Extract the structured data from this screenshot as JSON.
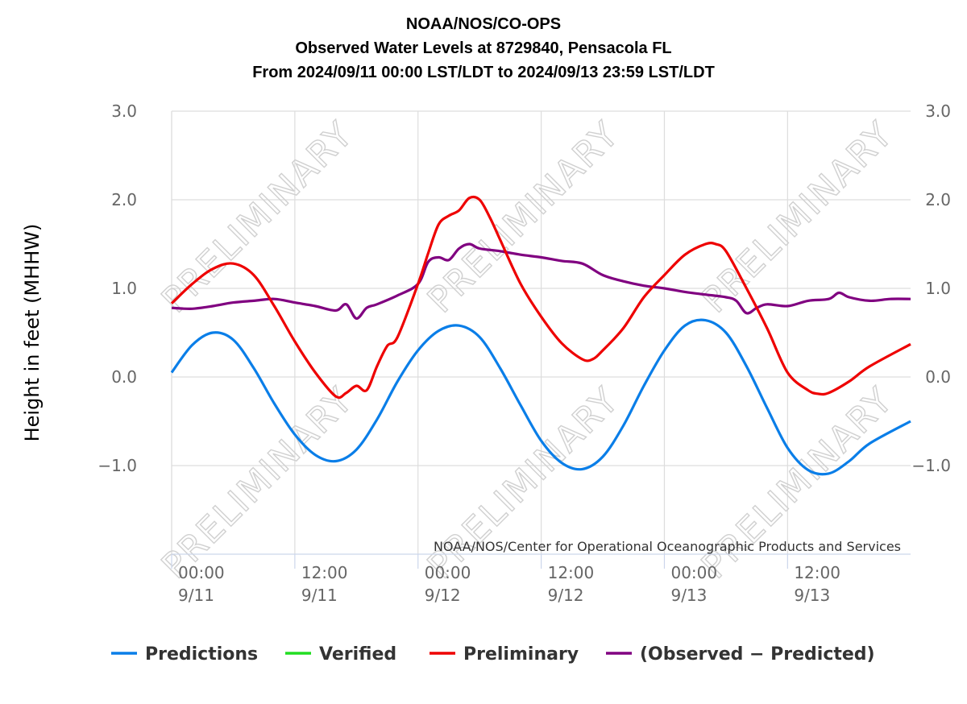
{
  "chart_data": {
    "type": "line",
    "title": "NOAA/NOS/CO-OPS",
    "subtitle_lines": [
      "Observed Water Levels at 8729840, Pensacola FL",
      "From 2024/09/11 00:00 LST/LDT to 2024/09/13 23:59 LST/LDT"
    ],
    "ylabel": "Height in feet (MHHW)",
    "ylim": [
      -2.0,
      3.0
    ],
    "y_ticks": [
      {
        "value": 3.0,
        "label": "3.0"
      },
      {
        "value": 2.0,
        "label": "2.0"
      },
      {
        "value": 1.0,
        "label": "1.0"
      },
      {
        "value": 0.0,
        "label": "0.0"
      },
      {
        "value": -1.0,
        "label": "−1.0"
      }
    ],
    "xlim": [
      "2024-09-11 00:00",
      "2024-09-13 23:59"
    ],
    "x_ticks": [
      {
        "time": "2024-09-11 00:00",
        "label1": "00:00",
        "label2": "9/11"
      },
      {
        "time": "2024-09-11 12:00",
        "label1": "12:00",
        "label2": "9/11"
      },
      {
        "time": "2024-09-12 00:00",
        "label1": "00:00",
        "label2": "9/12"
      },
      {
        "time": "2024-09-12 12:00",
        "label1": "12:00",
        "label2": "9/12"
      },
      {
        "time": "2024-09-13 00:00",
        "label1": "00:00",
        "label2": "9/13"
      },
      {
        "time": "2024-09-13 12:00",
        "label1": "12:00",
        "label2": "9/13"
      }
    ],
    "grid": true,
    "legend_position": "bottom",
    "credit": "NOAA/NOS/Center for Operational Oceanographic Products and Services",
    "watermark": "PRELIMINARY",
    "series": [
      {
        "name": "Predictions",
        "color": "#0a7ee8",
        "points": [
          {
            "t": "2024-09-11 00:00",
            "v": 0.05
          },
          {
            "t": "2024-09-11 02:00",
            "v": 0.36
          },
          {
            "t": "2024-09-11 04:00",
            "v": 0.5
          },
          {
            "t": "2024-09-11 06:00",
            "v": 0.42
          },
          {
            "t": "2024-09-11 08:00",
            "v": 0.1
          },
          {
            "t": "2024-09-11 10:00",
            "v": -0.3
          },
          {
            "t": "2024-09-11 12:00",
            "v": -0.65
          },
          {
            "t": "2024-09-11 14:00",
            "v": -0.88
          },
          {
            "t": "2024-09-11 16:00",
            "v": -0.95
          },
          {
            "t": "2024-09-11 18:00",
            "v": -0.82
          },
          {
            "t": "2024-09-11 20:00",
            "v": -0.48
          },
          {
            "t": "2024-09-11 22:00",
            "v": -0.05
          },
          {
            "t": "2024-09-12 00:00",
            "v": 0.3
          },
          {
            "t": "2024-09-12 02:00",
            "v": 0.52
          },
          {
            "t": "2024-09-12 04:00",
            "v": 0.58
          },
          {
            "t": "2024-09-12 06:00",
            "v": 0.45
          },
          {
            "t": "2024-09-12 08:00",
            "v": 0.1
          },
          {
            "t": "2024-09-12 10:00",
            "v": -0.32
          },
          {
            "t": "2024-09-12 12:00",
            "v": -0.72
          },
          {
            "t": "2024-09-12 14:00",
            "v": -0.97
          },
          {
            "t": "2024-09-12 16:00",
            "v": -1.04
          },
          {
            "t": "2024-09-12 18:00",
            "v": -0.9
          },
          {
            "t": "2024-09-12 20:00",
            "v": -0.55
          },
          {
            "t": "2024-09-12 22:00",
            "v": -0.1
          },
          {
            "t": "2024-09-13 00:00",
            "v": 0.3
          },
          {
            "t": "2024-09-13 02:00",
            "v": 0.58
          },
          {
            "t": "2024-09-13 04:00",
            "v": 0.64
          },
          {
            "t": "2024-09-13 06:00",
            "v": 0.5
          },
          {
            "t": "2024-09-13 08:00",
            "v": 0.12
          },
          {
            "t": "2024-09-13 10:00",
            "v": -0.35
          },
          {
            "t": "2024-09-13 12:00",
            "v": -0.8
          },
          {
            "t": "2024-09-13 14:00",
            "v": -1.05
          },
          {
            "t": "2024-09-13 16:00",
            "v": -1.09
          },
          {
            "t": "2024-09-13 18:00",
            "v": -0.95
          },
          {
            "t": "2024-09-13 20:00",
            "v": -0.75
          },
          {
            "t": "2024-09-13 23:59",
            "v": -0.5
          }
        ]
      },
      {
        "name": "Verified",
        "color": "#22dd22",
        "points": []
      },
      {
        "name": "Preliminary",
        "color": "#ee0000",
        "points": [
          {
            "t": "2024-09-11 00:00",
            "v": 0.83
          },
          {
            "t": "2024-09-11 02:00",
            "v": 1.05
          },
          {
            "t": "2024-09-11 04:00",
            "v": 1.22
          },
          {
            "t": "2024-09-11 06:00",
            "v": 1.28
          },
          {
            "t": "2024-09-11 08:00",
            "v": 1.15
          },
          {
            "t": "2024-09-11 10:00",
            "v": 0.8
          },
          {
            "t": "2024-09-11 12:00",
            "v": 0.4
          },
          {
            "t": "2024-09-11 14:00",
            "v": 0.05
          },
          {
            "t": "2024-09-11 16:00",
            "v": -0.22
          },
          {
            "t": "2024-09-11 17:00",
            "v": -0.18
          },
          {
            "t": "2024-09-11 18:00",
            "v": -0.1
          },
          {
            "t": "2024-09-11 19:00",
            "v": -0.15
          },
          {
            "t": "2024-09-11 20:00",
            "v": 0.12
          },
          {
            "t": "2024-09-11 21:00",
            "v": 0.35
          },
          {
            "t": "2024-09-11 22:00",
            "v": 0.45
          },
          {
            "t": "2024-09-12 00:00",
            "v": 1.05
          },
          {
            "t": "2024-09-12 01:00",
            "v": 1.4
          },
          {
            "t": "2024-09-12 02:00",
            "v": 1.72
          },
          {
            "t": "2024-09-12 03:00",
            "v": 1.82
          },
          {
            "t": "2024-09-12 04:00",
            "v": 1.88
          },
          {
            "t": "2024-09-12 05:00",
            "v": 2.02
          },
          {
            "t": "2024-09-12 06:00",
            "v": 2.0
          },
          {
            "t": "2024-09-12 07:00",
            "v": 1.8
          },
          {
            "t": "2024-09-12 08:00",
            "v": 1.55
          },
          {
            "t": "2024-09-12 10:00",
            "v": 1.05
          },
          {
            "t": "2024-09-12 12:00",
            "v": 0.68
          },
          {
            "t": "2024-09-12 14:00",
            "v": 0.38
          },
          {
            "t": "2024-09-12 16:00",
            "v": 0.2
          },
          {
            "t": "2024-09-12 17:00",
            "v": 0.2
          },
          {
            "t": "2024-09-12 18:00",
            "v": 0.3
          },
          {
            "t": "2024-09-12 20:00",
            "v": 0.55
          },
          {
            "t": "2024-09-12 22:00",
            "v": 0.9
          },
          {
            "t": "2024-09-13 00:00",
            "v": 1.15
          },
          {
            "t": "2024-09-13 02:00",
            "v": 1.38
          },
          {
            "t": "2024-09-13 04:00",
            "v": 1.5
          },
          {
            "t": "2024-09-13 05:00",
            "v": 1.5
          },
          {
            "t": "2024-09-13 06:00",
            "v": 1.42
          },
          {
            "t": "2024-09-13 08:00",
            "v": 1.0
          },
          {
            "t": "2024-09-13 10:00",
            "v": 0.55
          },
          {
            "t": "2024-09-13 12:00",
            "v": 0.05
          },
          {
            "t": "2024-09-13 14:00",
            "v": -0.15
          },
          {
            "t": "2024-09-13 15:00",
            "v": -0.19
          },
          {
            "t": "2024-09-13 16:00",
            "v": -0.18
          },
          {
            "t": "2024-09-13 18:00",
            "v": -0.05
          },
          {
            "t": "2024-09-13 20:00",
            "v": 0.12
          },
          {
            "t": "2024-09-13 23:59",
            "v": 0.37
          }
        ]
      },
      {
        "name": "(Observed − Predicted)",
        "color": "#800080",
        "points": [
          {
            "t": "2024-09-11 00:00",
            "v": 0.78
          },
          {
            "t": "2024-09-11 02:00",
            "v": 0.77
          },
          {
            "t": "2024-09-11 04:00",
            "v": 0.8
          },
          {
            "t": "2024-09-11 06:00",
            "v": 0.84
          },
          {
            "t": "2024-09-11 08:00",
            "v": 0.86
          },
          {
            "t": "2024-09-11 10:00",
            "v": 0.88
          },
          {
            "t": "2024-09-11 12:00",
            "v": 0.84
          },
          {
            "t": "2024-09-11 14:00",
            "v": 0.8
          },
          {
            "t": "2024-09-11 16:00",
            "v": 0.75
          },
          {
            "t": "2024-09-11 17:00",
            "v": 0.82
          },
          {
            "t": "2024-09-11 18:00",
            "v": 0.66
          },
          {
            "t": "2024-09-11 19:00",
            "v": 0.78
          },
          {
            "t": "2024-09-11 20:00",
            "v": 0.82
          },
          {
            "t": "2024-09-11 22:00",
            "v": 0.92
          },
          {
            "t": "2024-09-12 00:00",
            "v": 1.05
          },
          {
            "t": "2024-09-12 01:00",
            "v": 1.3
          },
          {
            "t": "2024-09-12 02:00",
            "v": 1.35
          },
          {
            "t": "2024-09-12 03:00",
            "v": 1.32
          },
          {
            "t": "2024-09-12 04:00",
            "v": 1.45
          },
          {
            "t": "2024-09-12 05:00",
            "v": 1.5
          },
          {
            "t": "2024-09-12 06:00",
            "v": 1.45
          },
          {
            "t": "2024-09-12 08:00",
            "v": 1.42
          },
          {
            "t": "2024-09-12 10:00",
            "v": 1.38
          },
          {
            "t": "2024-09-12 12:00",
            "v": 1.35
          },
          {
            "t": "2024-09-12 14:00",
            "v": 1.31
          },
          {
            "t": "2024-09-12 16:00",
            "v": 1.28
          },
          {
            "t": "2024-09-12 18:00",
            "v": 1.15
          },
          {
            "t": "2024-09-12 20:00",
            "v": 1.08
          },
          {
            "t": "2024-09-12 22:00",
            "v": 1.03
          },
          {
            "t": "2024-09-13 00:00",
            "v": 1.0
          },
          {
            "t": "2024-09-13 02:00",
            "v": 0.96
          },
          {
            "t": "2024-09-13 04:00",
            "v": 0.93
          },
          {
            "t": "2024-09-13 06:00",
            "v": 0.9
          },
          {
            "t": "2024-09-13 07:00",
            "v": 0.86
          },
          {
            "t": "2024-09-13 08:00",
            "v": 0.72
          },
          {
            "t": "2024-09-13 09:00",
            "v": 0.78
          },
          {
            "t": "2024-09-13 10:00",
            "v": 0.82
          },
          {
            "t": "2024-09-13 12:00",
            "v": 0.8
          },
          {
            "t": "2024-09-13 14:00",
            "v": 0.86
          },
          {
            "t": "2024-09-13 16:00",
            "v": 0.88
          },
          {
            "t": "2024-09-13 17:00",
            "v": 0.95
          },
          {
            "t": "2024-09-13 18:00",
            "v": 0.9
          },
          {
            "t": "2024-09-13 20:00",
            "v": 0.86
          },
          {
            "t": "2024-09-13 22:00",
            "v": 0.88
          },
          {
            "t": "2024-09-13 23:59",
            "v": 0.88
          }
        ]
      }
    ]
  }
}
